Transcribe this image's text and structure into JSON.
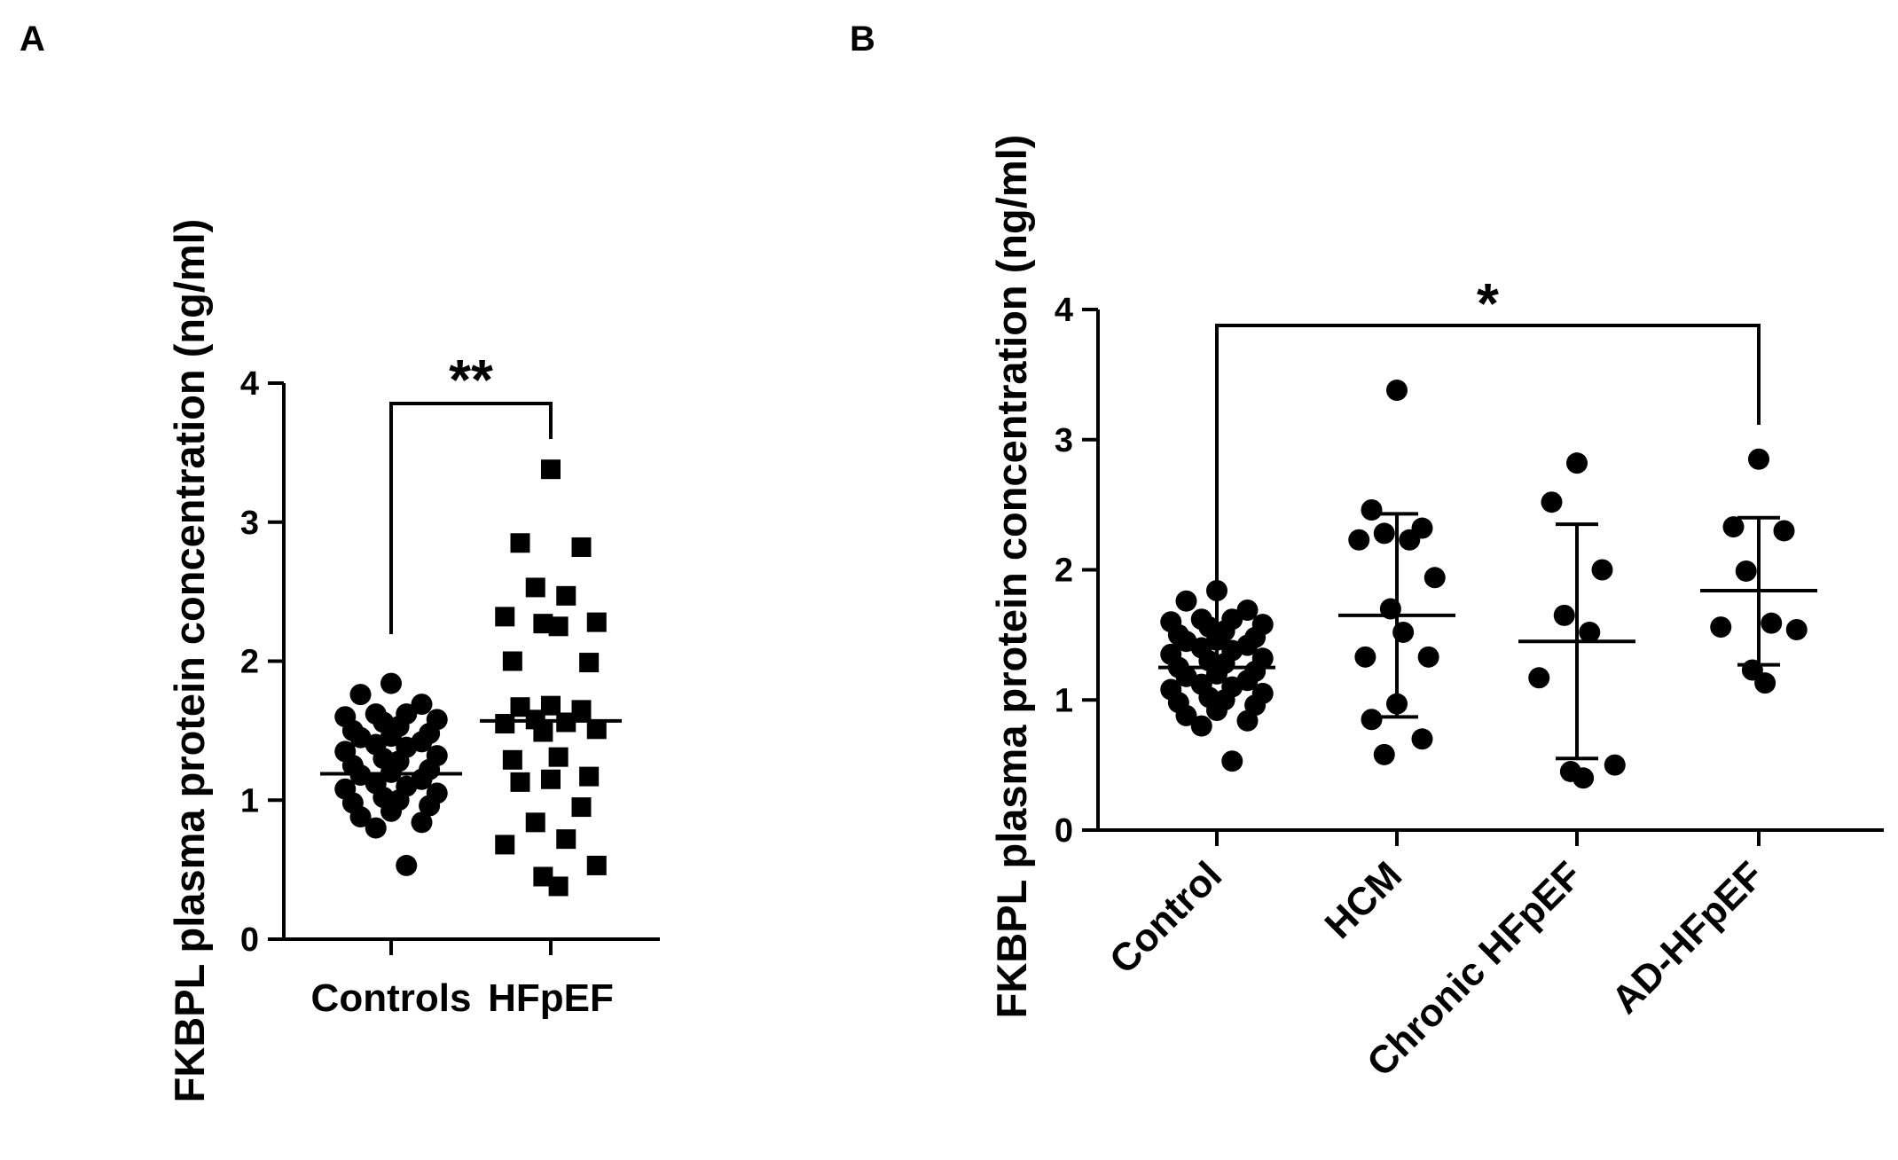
{
  "chart_data": [
    {
      "panel": "A",
      "type": "scatter",
      "title": "",
      "xlabel": "",
      "ylabel": "FKBPL plasma protein concentration (ng/ml)",
      "ylim": [
        0,
        4
      ],
      "yticks": [
        "0",
        "1",
        "2",
        "3",
        "4"
      ],
      "categories": [
        "Controls",
        "HFpEF"
      ],
      "marker": [
        "circle",
        "square"
      ],
      "series": [
        {
          "name": "Controls",
          "mean": 1.19,
          "values": [
            1.84,
            1.76,
            1.69,
            1.62,
            1.62,
            1.6,
            1.58,
            1.56,
            1.53,
            1.5,
            1.48,
            1.46,
            1.45,
            1.42,
            1.4,
            1.38,
            1.35,
            1.32,
            1.3,
            1.28,
            1.25,
            1.22,
            1.2,
            1.18,
            1.15,
            1.12,
            1.1,
            1.08,
            1.05,
            1.02,
            1.0,
            0.98,
            0.96,
            0.92,
            0.88,
            0.84,
            0.8,
            0.53
          ]
        },
        {
          "name": "HFpEF",
          "mean": 1.57,
          "values": [
            3.38,
            2.85,
            2.82,
            2.53,
            2.47,
            2.32,
            2.28,
            2.27,
            2.25,
            2.0,
            1.99,
            1.68,
            1.67,
            1.65,
            1.58,
            1.56,
            1.55,
            1.51,
            1.49,
            1.31,
            1.29,
            1.17,
            1.15,
            1.13,
            0.95,
            0.84,
            0.72,
            0.68,
            0.53,
            0.45,
            0.38
          ]
        }
      ],
      "significance": {
        "groups": [
          "Controls",
          "HFpEF"
        ],
        "label": "**"
      }
    },
    {
      "panel": "B",
      "type": "scatter",
      "title": "",
      "xlabel": "",
      "ylabel": "FKBPL plasma protein concentration (ng/ml)",
      "ylim": [
        0,
        4
      ],
      "yticks": [
        "0",
        "1",
        "2",
        "3",
        "4"
      ],
      "categories": [
        "Control",
        "HCM",
        "Chronic HFpEF",
        "AD-HFpEF"
      ],
      "marker": [
        "circle",
        "circle",
        "circle",
        "circle"
      ],
      "series": [
        {
          "name": "Control",
          "mean": 1.25,
          "sd_low": 1.25,
          "sd_high": 1.25,
          "values": [
            1.84,
            1.76,
            1.69,
            1.62,
            1.62,
            1.6,
            1.58,
            1.56,
            1.53,
            1.5,
            1.48,
            1.46,
            1.45,
            1.42,
            1.4,
            1.38,
            1.35,
            1.32,
            1.3,
            1.28,
            1.25,
            1.22,
            1.2,
            1.18,
            1.15,
            1.12,
            1.1,
            1.08,
            1.05,
            1.02,
            1.0,
            0.98,
            0.96,
            0.92,
            0.88,
            0.84,
            0.8,
            0.53
          ]
        },
        {
          "name": "HCM",
          "mean": 1.65,
          "sd_low": 0.87,
          "sd_high": 2.43,
          "values": [
            3.38,
            2.46,
            2.32,
            2.28,
            2.23,
            2.23,
            1.94,
            1.7,
            1.52,
            1.33,
            1.33,
            0.97,
            0.85,
            0.7,
            0.58
          ]
        },
        {
          "name": "Chronic HFpEF",
          "mean": 1.45,
          "sd_low": 0.55,
          "sd_high": 2.35,
          "values": [
            2.82,
            2.52,
            2.0,
            1.65,
            1.52,
            1.17,
            0.5,
            0.45,
            0.4
          ]
        },
        {
          "name": "AD-HFpEF",
          "mean": 1.84,
          "sd_low": 1.27,
          "sd_high": 2.4,
          "values": [
            2.85,
            2.33,
            2.3,
            1.99,
            1.59,
            1.56,
            1.54,
            1.23,
            1.13
          ]
        }
      ],
      "significance": {
        "groups": [
          "Control",
          "AD-HFpEF"
        ],
        "label": "*"
      }
    }
  ]
}
